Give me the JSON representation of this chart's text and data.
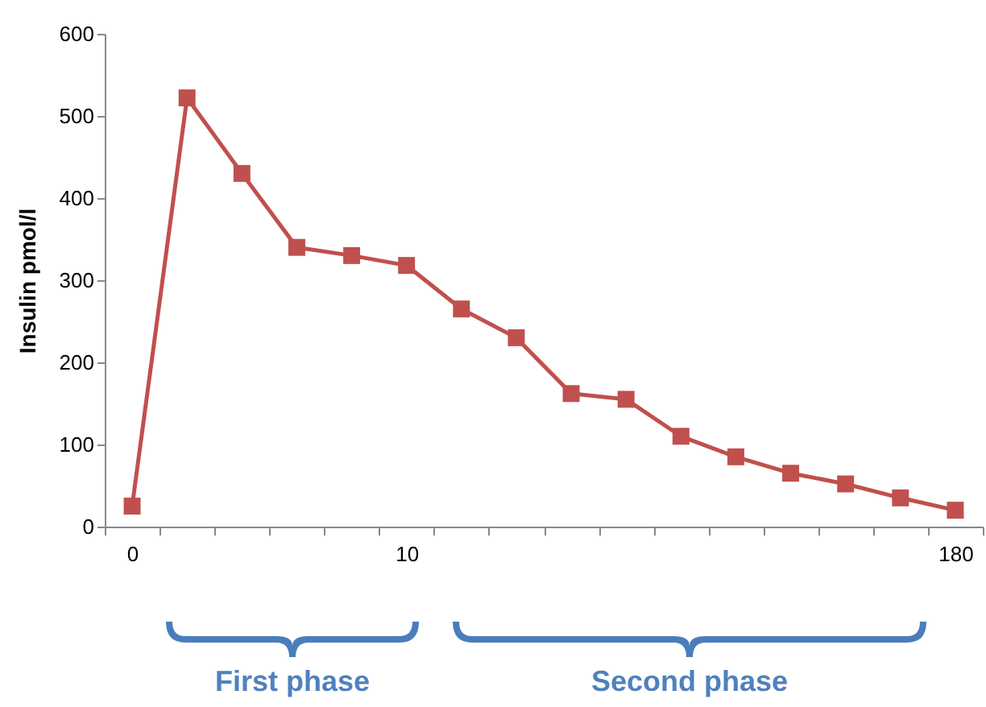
{
  "chart_data": {
    "type": "line",
    "ylabel": "Insulin pmol/l",
    "categories": [
      "0",
      null,
      null,
      null,
      null,
      "10",
      null,
      null,
      null,
      null,
      null,
      null,
      null,
      null,
      null,
      "180"
    ],
    "series": [
      {
        "color": "#c0504d",
        "values": [
          25,
          522,
          430,
          340,
          330,
          318,
          265,
          230,
          162,
          155,
          110,
          85,
          65,
          52,
          35,
          20
        ]
      }
    ],
    "ylim": [
      0,
      600
    ],
    "yticks": [
      0,
      100,
      200,
      300,
      400,
      500,
      600
    ],
    "marker": "square",
    "line_style": "solid",
    "grid": false,
    "legend": false,
    "annotations": [
      "First phase",
      "Second phase"
    ]
  }
}
